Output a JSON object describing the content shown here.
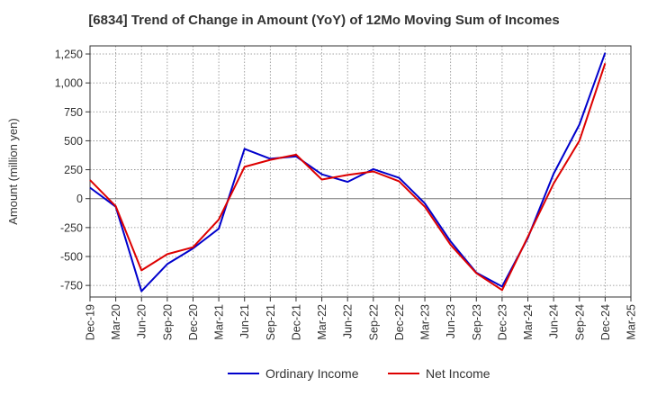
{
  "chart_data": {
    "type": "line",
    "title": "[6834]  Trend of Change in Amount (YoY) of 12Mo Moving Sum of Incomes",
    "xlabel": "",
    "ylabel": "Amount (million yen)",
    "categories": [
      "Dec-19",
      "Mar-20",
      "Jun-20",
      "Sep-20",
      "Dec-20",
      "Mar-21",
      "Jun-21",
      "Sep-21",
      "Dec-21",
      "Mar-22",
      "Jun-22",
      "Sep-22",
      "Dec-22",
      "Mar-23",
      "Jun-23",
      "Sep-23",
      "Dec-23",
      "Mar-24",
      "Jun-24",
      "Sep-24",
      "Dec-24",
      "Mar-25"
    ],
    "y_ticks": [
      1250,
      1000,
      750,
      500,
      250,
      0,
      -250,
      -500,
      -750
    ],
    "y_tick_labels": [
      "1,250",
      "1,000",
      "750",
      "500",
      "250",
      "0",
      "-250",
      "-500",
      "-750"
    ],
    "ylim": [
      -850,
      1320
    ],
    "grid": true,
    "legend_position": "bottom",
    "series": [
      {
        "name": "Ordinary Income",
        "color": "#0000cc",
        "values": [
          95,
          -70,
          -800,
          -565,
          -430,
          -260,
          430,
          345,
          365,
          210,
          145,
          255,
          180,
          -40,
          -370,
          -640,
          -760,
          -340,
          215,
          640,
          1260,
          null
        ]
      },
      {
        "name": "Net Income",
        "color": "#dd0000",
        "values": [
          160,
          -65,
          -620,
          -480,
          -420,
          -180,
          275,
          335,
          380,
          165,
          205,
          235,
          150,
          -70,
          -400,
          -645,
          -790,
          -330,
          130,
          500,
          1170,
          null
        ]
      }
    ]
  }
}
